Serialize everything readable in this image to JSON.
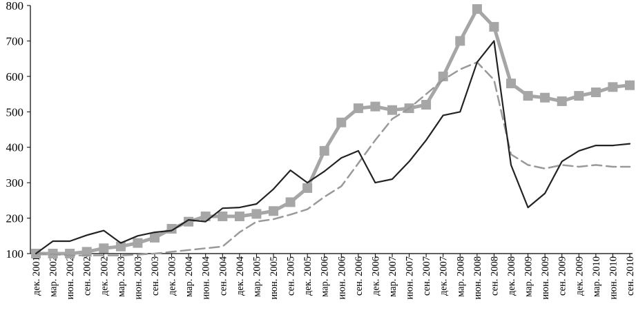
{
  "chart_data": {
    "type": "line",
    "title": "",
    "xlabel": "",
    "ylabel": "",
    "ylim": [
      100,
      800
    ],
    "yticks": [
      100,
      200,
      300,
      400,
      500,
      600,
      700,
      800
    ],
    "grid": false,
    "legend": "none",
    "categories": [
      "дек. 2001",
      "мар. 2002",
      "июн. 2002",
      "сен. 2002",
      "дек. 2002",
      "мар. 2003",
      "июн. 2003",
      "сен. 2003",
      "дек. 2003",
      "мар. 2004",
      "июн. 2004",
      "сен. 2004",
      "дек. 2004",
      "мар. 2005",
      "июн. 2005",
      "сен. 2005",
      "дек. 2005",
      "мар. 2006",
      "июн. 2006",
      "сен. 2006",
      "дек. 2006",
      "мар. 2007",
      "июн. 2007",
      "сен. 2007",
      "дек. 2007",
      "мар. 2008",
      "июн. 2008",
      "сен. 2008",
      "дек. 2008",
      "мар. 2009",
      "июн. 2009",
      "сен. 2009",
      "дек. 2009",
      "мар. 2010",
      "июн. 2010",
      "сен. 2010"
    ],
    "series": [
      {
        "style": "solid-dark",
        "color": "#222222",
        "values": [
          100,
          135,
          135,
          152,
          165,
          130,
          150,
          160,
          165,
          195,
          190,
          228,
          230,
          240,
          282,
          335,
          300,
          332,
          370,
          390,
          300,
          310,
          360,
          420,
          490,
          500,
          640,
          700,
          350,
          230,
          270,
          360,
          390,
          405,
          405,
          410
        ]
      },
      {
        "style": "dashed-gray",
        "color": "#999999",
        "values": [
          100,
          98,
          95,
          95,
          95,
          95,
          97,
          100,
          105,
          110,
          115,
          120,
          160,
          190,
          197,
          210,
          225,
          260,
          290,
          355,
          420,
          480,
          510,
          550,
          590,
          620,
          640,
          590,
          380,
          350,
          340,
          350,
          345,
          350,
          345,
          345
        ]
      },
      {
        "style": "thick-square-markers",
        "color": "#a6a6a6",
        "values": [
          100,
          100,
          100,
          105,
          115,
          120,
          130,
          145,
          170,
          190,
          205,
          205,
          205,
          212,
          220,
          245,
          285,
          390,
          470,
          510,
          515,
          505,
          510,
          520,
          600,
          700,
          790,
          740,
          580,
          545,
          540,
          530,
          545,
          555,
          570,
          575
        ]
      }
    ]
  }
}
